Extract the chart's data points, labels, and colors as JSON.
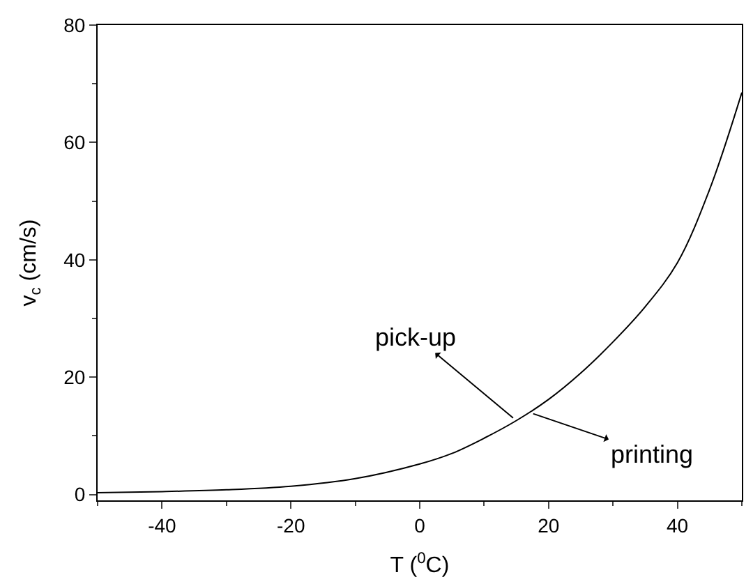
{
  "chart_data": {
    "type": "line",
    "xlabel": "T ($^{0}$C)",
    "ylabel": "v$_{c}$ (cm/s)",
    "x": [
      -50,
      -40,
      -30,
      -20,
      -10,
      0,
      5,
      10,
      15,
      20,
      25,
      30,
      35,
      40,
      45,
      50
    ],
    "series": [
      {
        "color": "#000000",
        "values": [
          0.3,
          0.5,
          0.8,
          1.4,
          2.7,
          5.2,
          7,
          9.6,
          12.6,
          16.2,
          20.7,
          26,
          32,
          39.5,
          52,
          68.5
        ]
      }
    ],
    "xlim": [
      -50,
      50
    ],
    "xticks": [
      -40,
      -20,
      0,
      20,
      40
    ],
    "ylim": [
      -1,
      80
    ],
    "yticks": [
      0,
      20,
      40,
      60,
      80
    ],
    "annotations": [
      {
        "text": "pick-up",
        "x": 15,
        "y": 12.6
      },
      {
        "text": "printing",
        "x": 17,
        "y": 14
      }
    ],
    "legend": false,
    "marker": "none",
    "line_style": "solid"
  }
}
